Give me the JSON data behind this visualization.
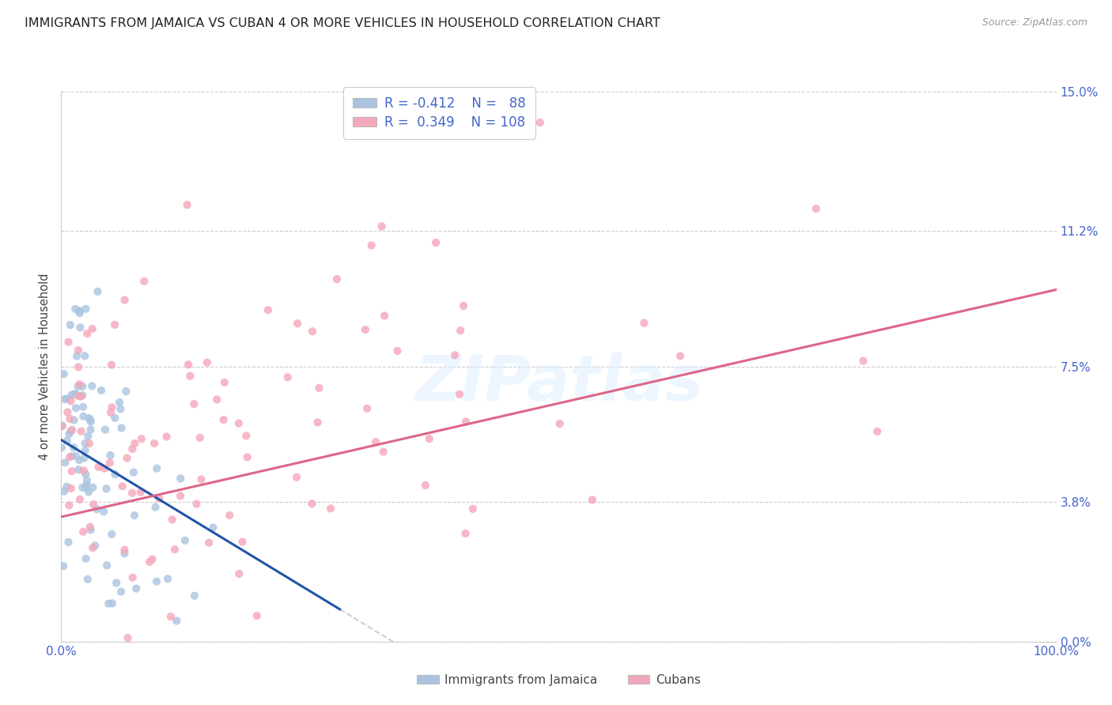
{
  "title": "IMMIGRANTS FROM JAMAICA VS CUBAN 4 OR MORE VEHICLES IN HOUSEHOLD CORRELATION CHART",
  "source": "Source: ZipAtlas.com",
  "ylabel": "4 or more Vehicles in Household",
  "ytick_vals": [
    0.0,
    3.8,
    7.5,
    11.2,
    15.0
  ],
  "xlim": [
    0.0,
    100.0
  ],
  "ylim": [
    0.0,
    15.0
  ],
  "jamaica_R": -0.412,
  "jamaica_N": 88,
  "cuban_R": 0.349,
  "cuban_N": 108,
  "jamaica_color": "#aac4e0",
  "cuban_color": "#f4a7b9",
  "jamaica_line_color": "#2255aa",
  "cuban_line_color": "#dd6688",
  "legend_label_jamaica": "Immigrants from Jamaica",
  "legend_label_cuban": "Cubans",
  "watermark": "ZIPatlas",
  "background_color": "#ffffff",
  "title_color": "#222222",
  "title_fontsize": 11.5,
  "tick_color": "#4466cc",
  "source_color": "#999999"
}
